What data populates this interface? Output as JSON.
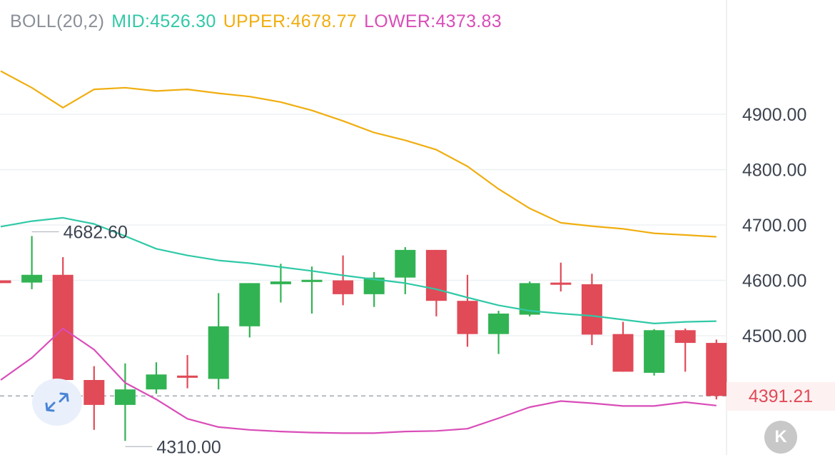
{
  "legend": {
    "indicator": "BOLL(20,2)",
    "mid": "MID:4526.30",
    "upper": "UPPER:4678.77",
    "lower": "LOWER:4373.83"
  },
  "colors": {
    "up": "#32b353",
    "down": "#e14a57",
    "mid": "#30c9a7",
    "upper": "#f0ae10",
    "lower": "#d94db8",
    "legend_indicator": "#8a8f98",
    "grid": "#eef1f4",
    "axis_text": "#3d4450"
  },
  "current_price": "4391.21",
  "high_label": "4682.60",
  "low_label": "4310.00",
  "buttons": {
    "zoom": "expand-arrows-icon",
    "kline": "K"
  },
  "chart_data": {
    "type": "candlestick",
    "title": "",
    "yaxis": {
      "ticks": [
        "4900.00",
        "4800.00",
        "4700.00",
        "4600.00",
        "4500.00"
      ],
      "tick_values": [
        4900,
        4800,
        4700,
        4600,
        4500
      ]
    },
    "candles": [
      {
        "open": 4600,
        "close": 4595,
        "high": 4600,
        "low": 4595
      },
      {
        "open": 4596,
        "close": 4610,
        "high": 4680,
        "low": 4584
      },
      {
        "open": 4610,
        "close": 4420,
        "high": 4642,
        "low": 4420
      },
      {
        "open": 4420,
        "close": 4375,
        "high": 4445,
        "low": 4330
      },
      {
        "open": 4375,
        "close": 4403,
        "high": 4450,
        "low": 4310
      },
      {
        "open": 4403,
        "close": 4430,
        "high": 4452,
        "low": 4395
      },
      {
        "open": 4428,
        "close": 4424,
        "high": 4465,
        "low": 4405
      },
      {
        "open": 4422,
        "close": 4517,
        "high": 4577,
        "low": 4403
      },
      {
        "open": 4517,
        "close": 4595,
        "high": 4595,
        "low": 4497
      },
      {
        "open": 4593,
        "close": 4598,
        "high": 4630,
        "low": 4560
      },
      {
        "open": 4597,
        "close": 4601,
        "high": 4625,
        "low": 4540
      },
      {
        "open": 4600,
        "close": 4575,
        "high": 4645,
        "low": 4555
      },
      {
        "open": 4575,
        "close": 4605,
        "high": 4615,
        "low": 4552
      },
      {
        "open": 4605,
        "close": 4655,
        "high": 4660,
        "low": 4575
      },
      {
        "open": 4655,
        "close": 4563,
        "high": 4655,
        "low": 4535
      },
      {
        "open": 4563,
        "close": 4503,
        "high": 4610,
        "low": 4480
      },
      {
        "open": 4503,
        "close": 4540,
        "high": 4545,
        "low": 4467
      },
      {
        "open": 4538,
        "close": 4595,
        "high": 4598,
        "low": 4535
      },
      {
        "open": 4596,
        "close": 4592,
        "high": 4632,
        "low": 4580
      },
      {
        "open": 4593,
        "close": 4502,
        "high": 4612,
        "low": 4483
      },
      {
        "open": 4503,
        "close": 4435,
        "high": 4525,
        "low": 4435
      },
      {
        "open": 4433,
        "close": 4510,
        "high": 4512,
        "low": 4428
      },
      {
        "open": 4510,
        "close": 4487,
        "high": 4513,
        "low": 4435
      },
      {
        "open": 4487,
        "close": 4391.21,
        "high": 4493,
        "low": 4385
      }
    ],
    "boll_mid": [
      4697,
      4707,
      4713,
      4702,
      4680,
      4657,
      4645,
      4636,
      4631,
      4624,
      4617,
      4609,
      4602,
      4595,
      4584,
      4569,
      4555,
      4545,
      4540,
      4536,
      4529,
      4522,
      4525,
      4526.3
    ],
    "boll_upper": [
      4978,
      4948,
      4912,
      4945,
      4948,
      4942,
      4945,
      4938,
      4932,
      4922,
      4907,
      4888,
      4867,
      4853,
      4836,
      4806,
      4765,
      4730,
      4704,
      4698,
      4693,
      4685,
      4682,
      4678.77
    ],
    "boll_lower": [
      4420,
      4460,
      4513,
      4475,
      4415,
      4385,
      4350,
      4335,
      4330,
      4327,
      4325,
      4324,
      4324,
      4327,
      4328,
      4332,
      4351,
      4371,
      4382,
      4378,
      4373,
      4373,
      4380,
      4373.83
    ]
  }
}
